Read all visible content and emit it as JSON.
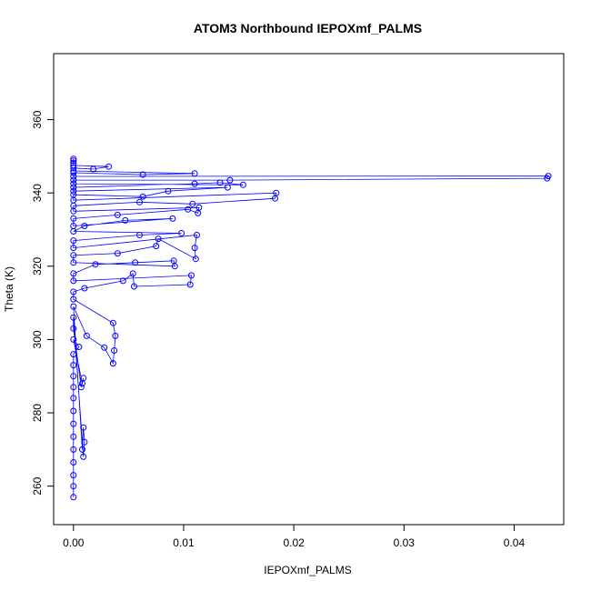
{
  "chart_data": {
    "type": "scatter",
    "title": "ATOM3 Northbound IEPOXmf_PALMS",
    "xlabel": "IEPOXmf_PALMS",
    "ylabel": "Theta (K)",
    "xlim": [
      -0.0018,
      0.0445
    ],
    "ylim": [
      249.5,
      378
    ],
    "xticks": [
      0.0,
      0.01,
      0.02,
      0.03,
      0.04
    ],
    "xtick_labels": [
      "0.00",
      "0.01",
      "0.02",
      "0.03",
      "0.04"
    ],
    "yticks": [
      260,
      280,
      300,
      320,
      340,
      360
    ],
    "ytick_labels": [
      "260",
      "280",
      "300",
      "320",
      "340",
      "360"
    ],
    "grid": false,
    "legend": "none",
    "color": "#0000ff",
    "series": [
      {
        "marker": "open-circle",
        "connected": true,
        "points": [
          [
            0.0,
            257.0
          ],
          [
            0.0,
            260.0
          ],
          [
            0.0,
            263.0
          ],
          [
            0.0,
            266.5
          ],
          [
            0.0,
            270.0
          ],
          [
            0.0,
            273.5
          ],
          [
            0.0,
            277.0
          ],
          [
            0.0,
            280.5
          ],
          [
            0.0,
            284.0
          ],
          [
            0.0,
            287.0
          ],
          [
            0.0,
            290.0
          ],
          [
            0.0,
            293.0
          ],
          [
            0.0,
            296.0
          ],
          [
            0.0005,
            298.0
          ],
          [
            0.0,
            300.0
          ],
          [
            0.0008,
            288.0
          ],
          [
            0.0009,
            289.5
          ],
          [
            0.0007,
            287.0
          ],
          [
            0.0,
            303.0
          ],
          [
            0.0,
            306.0
          ],
          [
            0.0009,
            268.0
          ],
          [
            0.001,
            272.0
          ],
          [
            0.0009,
            276.0
          ],
          [
            0.0008,
            270.0
          ],
          [
            0.0,
            309.0
          ],
          [
            0.0012,
            301.0
          ],
          [
            0.0028,
            297.8
          ],
          [
            0.0036,
            293.5
          ],
          [
            0.0037,
            297.0
          ],
          [
            0.0038,
            301.0
          ],
          [
            0.0036,
            304.5
          ],
          [
            0.0,
            311.0
          ],
          [
            0.0,
            313.0
          ],
          [
            0.001,
            314.0
          ],
          [
            0.0045,
            316.0
          ],
          [
            0.0054,
            318.0
          ],
          [
            0.0055,
            314.5
          ],
          [
            0.0106,
            315.0
          ],
          [
            0.0107,
            317.5
          ],
          [
            0.0,
            316.0
          ],
          [
            0.0,
            318.0
          ],
          [
            0.002,
            320.5
          ],
          [
            0.0056,
            321.0
          ],
          [
            0.0091,
            321.5
          ],
          [
            0.0092,
            320.0
          ],
          [
            0.0,
            321.0
          ],
          [
            0.0,
            323.0
          ],
          [
            0.004,
            323.5
          ],
          [
            0.0075,
            325.5
          ],
          [
            0.0077,
            327.5
          ],
          [
            0.0111,
            322.0
          ],
          [
            0.011,
            325.0
          ],
          [
            0.0112,
            328.5
          ],
          [
            0.0,
            325.0
          ],
          [
            0.0,
            327.0
          ],
          [
            0.006,
            328.5
          ],
          [
            0.0098,
            329.0
          ],
          [
            0.0,
            329.5
          ],
          [
            0.001,
            331.0
          ],
          [
            0.0047,
            332.5
          ],
          [
            0.009,
            333.0
          ],
          [
            0.0,
            331.0
          ],
          [
            0.0,
            333.0
          ],
          [
            0.004,
            334.0
          ],
          [
            0.0104,
            335.5
          ],
          [
            0.0113,
            334.5
          ],
          [
            0.0114,
            336.0
          ],
          [
            0.0,
            335.0
          ],
          [
            0.0,
            336.5
          ],
          [
            0.006,
            337.5
          ],
          [
            0.0108,
            337.0
          ],
          [
            0.0183,
            338.5
          ],
          [
            0.0184,
            340.0
          ],
          [
            0.0,
            338.0
          ],
          [
            0.0,
            339.5
          ],
          [
            0.0063,
            339.0
          ],
          [
            0.0086,
            340.5
          ],
          [
            0.014,
            341.5
          ],
          [
            0.0,
            340.5
          ],
          [
            0.0,
            341.5
          ],
          [
            0.011,
            342.5
          ],
          [
            0.0133,
            342.8
          ],
          [
            0.0154,
            342.2
          ],
          [
            0.0,
            342.5
          ],
          [
            0.0,
            343.5
          ],
          [
            0.0142,
            343.5
          ],
          [
            0.043,
            344.0
          ],
          [
            0.0431,
            344.6
          ],
          [
            0.0,
            344.5
          ],
          [
            0.0,
            345.5
          ],
          [
            0.0063,
            345.0
          ],
          [
            0.011,
            345.3
          ],
          [
            0.0,
            346.0
          ],
          [
            0.0,
            346.8
          ],
          [
            0.0018,
            346.5
          ],
          [
            0.0032,
            347.2
          ],
          [
            0.0,
            347.5
          ],
          [
            0.0,
            348.2
          ],
          [
            0.0,
            348.8
          ],
          [
            0.0,
            349.3
          ]
        ]
      }
    ]
  }
}
